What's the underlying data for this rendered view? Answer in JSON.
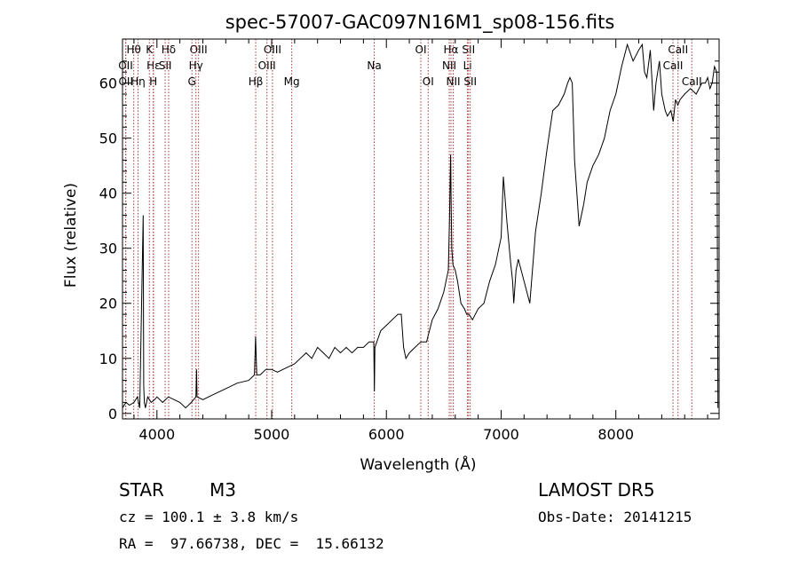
{
  "chart_data": {
    "type": "line",
    "title": "spec-57007-GAC097N16M1_sp08-156.fits",
    "xlabel": "Wavelength (Å)",
    "ylabel": "Flux (relative)",
    "xlim": [
      3700,
      8900
    ],
    "ylim": [
      -1,
      68
    ],
    "x_ticks": [
      4000,
      5000,
      6000,
      7000,
      8000
    ],
    "y_ticks": [
      0,
      10,
      20,
      30,
      40,
      50,
      60
    ],
    "grid": false,
    "series": [
      {
        "x": [
          3700,
          3730,
          3760,
          3800,
          3830,
          3850,
          3880,
          3885,
          3890,
          3900,
          3920,
          3950,
          3980,
          4000,
          4050,
          4100,
          4150,
          4200,
          4250,
          4300,
          4340,
          4345,
          4350,
          4400,
          4450,
          4500,
          4600,
          4700,
          4800,
          4850,
          4860,
          4870,
          4900,
          4950,
          5000,
          5050,
          5100,
          5150,
          5200,
          5250,
          5300,
          5350,
          5400,
          5450,
          5500,
          5550,
          5600,
          5650,
          5700,
          5750,
          5800,
          5850,
          5890,
          5895,
          5900,
          5950,
          6000,
          6050,
          6100,
          6130,
          6150,
          6170,
          6200,
          6250,
          6300,
          6350,
          6400,
          6450,
          6500,
          6540,
          6550,
          6560,
          6565,
          6570,
          6580,
          6600,
          6620,
          6650,
          6680,
          6700,
          6720,
          6750,
          6800,
          6850,
          6900,
          6950,
          7000,
          7020,
          7050,
          7080,
          7100,
          7110,
          7130,
          7150,
          7200,
          7250,
          7300,
          7350,
          7400,
          7450,
          7500,
          7550,
          7580,
          7600,
          7620,
          7640,
          7660,
          7680,
          7700,
          7720,
          7750,
          7800,
          7850,
          7900,
          7950,
          8000,
          8050,
          8100,
          8150,
          8200,
          8230,
          8250,
          8270,
          8300,
          8330,
          8350,
          8380,
          8400,
          8430,
          8450,
          8480,
          8500,
          8520,
          8540,
          8560,
          8600,
          8650,
          8700,
          8750,
          8780,
          8800,
          8820,
          8840,
          8860,
          8880,
          8890
        ],
        "y": [
          1,
          2,
          1.5,
          2,
          3,
          1,
          36,
          5,
          2,
          1,
          3,
          2,
          2.5,
          3,
          2,
          3,
          2.5,
          2,
          1,
          2,
          3,
          8,
          3,
          2.5,
          3,
          3.5,
          4.5,
          5.5,
          6,
          7,
          14,
          7,
          7,
          8,
          8,
          7.5,
          8,
          8.5,
          9,
          10,
          11,
          10,
          12,
          11,
          10,
          12,
          11,
          12,
          11,
          12,
          12,
          13,
          13,
          4,
          12,
          15,
          16,
          17,
          18,
          18,
          12,
          10,
          11,
          12,
          13,
          13,
          17,
          19,
          22,
          26,
          35,
          47,
          38,
          30,
          27,
          26,
          24,
          20,
          19,
          18,
          18,
          17,
          19,
          20,
          24,
          27,
          32,
          43,
          35,
          28,
          24,
          20,
          26,
          28,
          24,
          20,
          33,
          40,
          48,
          55,
          56,
          58,
          60,
          61,
          60,
          46,
          40,
          34,
          36,
          38,
          42,
          45,
          47,
          50,
          55,
          58,
          63,
          67,
          64,
          66,
          67,
          62,
          61,
          66,
          55,
          60,
          64,
          58,
          55,
          54,
          55,
          53,
          57,
          56,
          57,
          58,
          59,
          58,
          60,
          60,
          61,
          59,
          60,
          63,
          62,
          1
        ]
      }
    ],
    "line_markers": [
      {
        "name": "Hθ",
        "x": 3798,
        "row": 0
      },
      {
        "name": "OII",
        "x": 3727,
        "row": 1
      },
      {
        "name": "OII",
        "x": 3729,
        "row": 2
      },
      {
        "name": "Hη",
        "x": 3835,
        "row": 2
      },
      {
        "name": "K",
        "x": 3934,
        "row": 0
      },
      {
        "name": "Hε",
        "x": 3970,
        "row": 1
      },
      {
        "name": "H",
        "x": 3968,
        "row": 2
      },
      {
        "name": "Hδ",
        "x": 4102,
        "row": 0
      },
      {
        "name": "SII",
        "x": 4072,
        "row": 1
      },
      {
        "name": "OIII",
        "x": 4363,
        "row": 0
      },
      {
        "name": "Hγ",
        "x": 4340,
        "row": 1
      },
      {
        "name": "G",
        "x": 4305,
        "row": 2
      },
      {
        "name": "OIII",
        "x": 5007,
        "row": 0
      },
      {
        "name": "OIII",
        "x": 4959,
        "row": 1
      },
      {
        "name": "Hβ",
        "x": 4861,
        "row": 2
      },
      {
        "name": "Mg",
        "x": 5175,
        "row": 2
      },
      {
        "name": "Na",
        "x": 5894,
        "row": 1
      },
      {
        "name": "OI",
        "x": 6300,
        "row": 0
      },
      {
        "name": "OI",
        "x": 6364,
        "row": 2
      },
      {
        "name": "Hα",
        "x": 6563,
        "row": 0
      },
      {
        "name": "NII",
        "x": 6548,
        "row": 1
      },
      {
        "name": "NII",
        "x": 6583,
        "row": 2
      },
      {
        "name": "SII",
        "x": 6716,
        "row": 0
      },
      {
        "name": "Li",
        "x": 6707,
        "row": 1
      },
      {
        "name": "SII",
        "x": 6731,
        "row": 2
      },
      {
        "name": "CaII",
        "x": 8542,
        "row": 0
      },
      {
        "name": "CaII",
        "x": 8498,
        "row": 1
      },
      {
        "name": "CaII",
        "x": 8662,
        "row": 2
      }
    ],
    "line_color": "#a83a3a"
  },
  "info": {
    "object_type": "STAR",
    "subclass": "M3",
    "survey": "LAMOST DR5",
    "cz": "cz = 100.1 ± 3.8 km/s",
    "obs_date": "Obs-Date: 20141215",
    "radec": "RA =  97.66738, DEC =  15.66132"
  }
}
